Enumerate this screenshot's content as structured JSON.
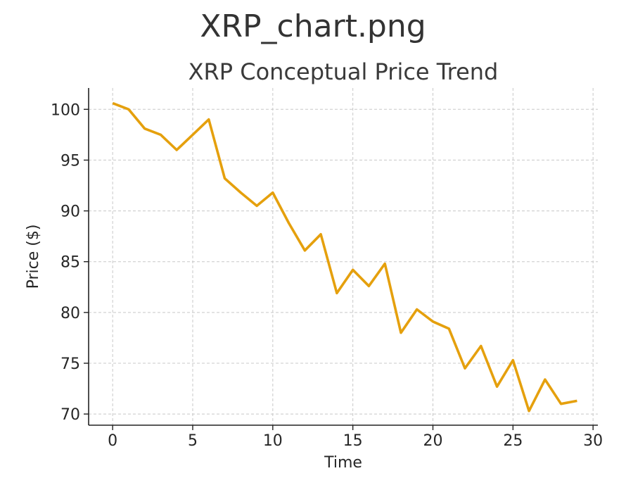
{
  "window": {
    "file_title": "XRP_chart.png"
  },
  "chart_data": {
    "type": "line",
    "title": "XRP Conceptual Price Trend",
    "xlabel": "Time",
    "ylabel": "Price ($)",
    "xlim": [
      -1.5,
      30.3
    ],
    "ylim": [
      68.9,
      102.1
    ],
    "xticks": [
      0,
      5,
      10,
      15,
      20,
      25,
      30
    ],
    "yticks": [
      70,
      75,
      80,
      85,
      90,
      95,
      100
    ],
    "xtick_labels": [
      "0",
      "5",
      "10",
      "15",
      "20",
      "25",
      "30"
    ],
    "ytick_labels": [
      "70",
      "75",
      "80",
      "85",
      "90",
      "95",
      "100"
    ],
    "grid": true,
    "line_color": "#e5a00d",
    "grid_color": "#c8c8c8",
    "series": [
      {
        "x": [
          0,
          1,
          2,
          3,
          4,
          5,
          6,
          7,
          8,
          9,
          10,
          11,
          12,
          13,
          14,
          15,
          16,
          17,
          18,
          19,
          20,
          21,
          22,
          23,
          24,
          25,
          26,
          27,
          28,
          29
        ],
        "values": [
          100.6,
          100.0,
          98.1,
          97.5,
          96.0,
          97.5,
          99.0,
          93.2,
          91.8,
          90.5,
          91.8,
          88.8,
          86.1,
          87.7,
          81.9,
          84.2,
          82.6,
          84.8,
          78.0,
          80.3,
          79.1,
          78.4,
          74.5,
          76.7,
          72.7,
          75.3,
          70.3,
          73.4,
          71.0,
          71.3
        ]
      }
    ]
  }
}
